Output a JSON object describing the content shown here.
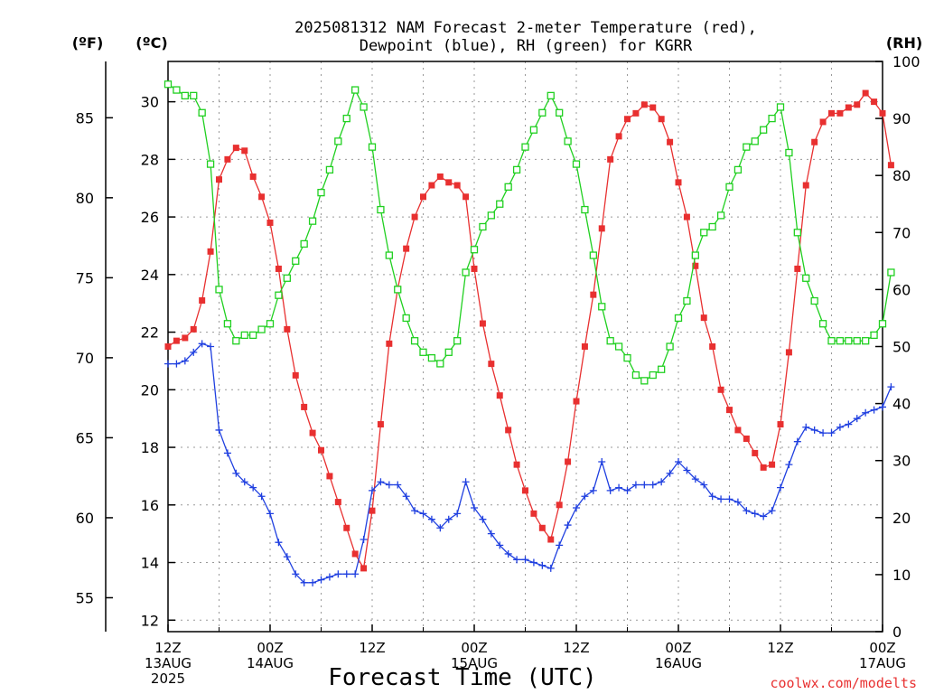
{
  "chart_data": {
    "type": "line",
    "title_line1": "2025081312 NAM Forecast 2-meter Temperature (red),",
    "title_line2": "Dewpoint (blue), RH (green) for KGRR",
    "xlabel": "Forecast Time (UTC)",
    "credit": "coolwx.com/modelts",
    "units": {
      "fahrenheit": "(ºF)",
      "celsius": "(ºC)",
      "rh": "(RH)"
    },
    "x_hours_range": [
      0,
      84
    ],
    "xticks": [
      {
        "line1": "12Z",
        "line2": "13AUG",
        "line3": "2025"
      },
      {
        "line1": "00Z",
        "line2": "14AUG",
        "line3": ""
      },
      {
        "line1": "12Z",
        "line2": "",
        "line3": ""
      },
      {
        "line1": "00Z",
        "line2": "15AUG",
        "line3": ""
      },
      {
        "line1": "12Z",
        "line2": "",
        "line3": ""
      },
      {
        "line1": "00Z",
        "line2": "16AUG",
        "line3": ""
      },
      {
        "line1": "12Z",
        "line2": "",
        "line3": ""
      },
      {
        "line1": "00Z",
        "line2": "17AUG",
        "line3": ""
      }
    ],
    "celsius_axis": {
      "ylim": [
        11.6,
        31.4
      ],
      "ticks": [
        12,
        14,
        16,
        18,
        20,
        22,
        24,
        26,
        28,
        30
      ]
    },
    "fahrenheit_axis": {
      "ticks": [
        "55",
        "60",
        "65",
        "70",
        "75",
        "80",
        "85"
      ]
    },
    "rh_axis": {
      "ylim": [
        0,
        100
      ],
      "ticks": [
        "0",
        "10",
        "20",
        "30",
        "40",
        "50",
        "60",
        "70",
        "80",
        "90",
        "100"
      ]
    },
    "grid": true,
    "series": [
      {
        "name": "Temperature",
        "color": "#e83030",
        "marker": "filled-square",
        "axis": "celsius",
        "values": [
          21.5,
          21.7,
          21.8,
          22.1,
          23.1,
          24.8,
          27.3,
          28.0,
          28.4,
          28.3,
          27.4,
          26.7,
          25.8,
          24.2,
          22.1,
          20.5,
          19.4,
          18.5,
          17.9,
          17.0,
          16.1,
          15.2,
          14.3,
          13.8,
          15.8,
          18.8,
          21.6,
          23.5,
          24.9,
          26.0,
          26.7,
          27.1,
          27.4,
          27.2,
          27.1,
          26.7,
          24.2,
          22.3,
          20.9,
          19.8,
          18.6,
          17.4,
          16.5,
          15.7,
          15.2,
          14.8,
          16.0,
          17.5,
          19.6,
          21.5,
          23.3,
          25.6,
          28.0,
          28.8,
          29.4,
          29.6,
          29.9,
          29.8,
          29.4,
          28.6,
          27.2,
          26.0,
          24.3,
          22.5,
          21.5,
          20.0,
          19.3,
          18.6,
          18.3,
          17.8,
          17.3,
          17.4,
          18.8,
          21.3,
          24.2,
          27.1,
          28.6,
          29.3,
          29.6,
          29.6,
          29.8,
          29.9,
          30.3,
          30.0,
          29.6,
          27.8
        ]
      },
      {
        "name": "Dewpoint",
        "color": "#2040e0",
        "marker": "plus",
        "axis": "celsius",
        "values": [
          20.9,
          20.9,
          21.0,
          21.3,
          21.6,
          21.5,
          18.6,
          17.8,
          17.1,
          16.8,
          16.6,
          16.3,
          15.7,
          14.7,
          14.2,
          13.6,
          13.3,
          13.3,
          13.4,
          13.5,
          13.6,
          13.6,
          13.6,
          14.8,
          16.5,
          16.8,
          16.7,
          16.7,
          16.3,
          15.8,
          15.7,
          15.5,
          15.2,
          15.5,
          15.7,
          16.8,
          15.9,
          15.5,
          15.0,
          14.6,
          14.3,
          14.1,
          14.1,
          14.0,
          13.9,
          13.8,
          14.6,
          15.3,
          15.9,
          16.3,
          16.5,
          17.5,
          16.5,
          16.6,
          16.5,
          16.7,
          16.7,
          16.7,
          16.8,
          17.1,
          17.5,
          17.2,
          16.9,
          16.7,
          16.3,
          16.2,
          16.2,
          16.1,
          15.8,
          15.7,
          15.6,
          15.8,
          16.6,
          17.4,
          18.2,
          18.7,
          18.6,
          18.5,
          18.5,
          18.7,
          18.8,
          19.0,
          19.2,
          19.3,
          19.4,
          20.1
        ]
      },
      {
        "name": "RH",
        "color": "#20d020",
        "marker": "open-square",
        "axis": "rh",
        "values": [
          96,
          95,
          94,
          94,
          91,
          82,
          60,
          54,
          51,
          52,
          52,
          53,
          54,
          59,
          62,
          65,
          68,
          72,
          77,
          81,
          86,
          90,
          95,
          92,
          85,
          74,
          66,
          60,
          55,
          51,
          49,
          48,
          47,
          49,
          51,
          63,
          67,
          71,
          73,
          75,
          78,
          81,
          85,
          88,
          91,
          94,
          91,
          86,
          82,
          74,
          66,
          57,
          51,
          50,
          48,
          45,
          44,
          45,
          46,
          50,
          55,
          58,
          66,
          70,
          71,
          73,
          78,
          81,
          85,
          86,
          88,
          90,
          92,
          84,
          70,
          62,
          58,
          54,
          51,
          51,
          51,
          51,
          51,
          52,
          54,
          63
        ]
      }
    ]
  }
}
